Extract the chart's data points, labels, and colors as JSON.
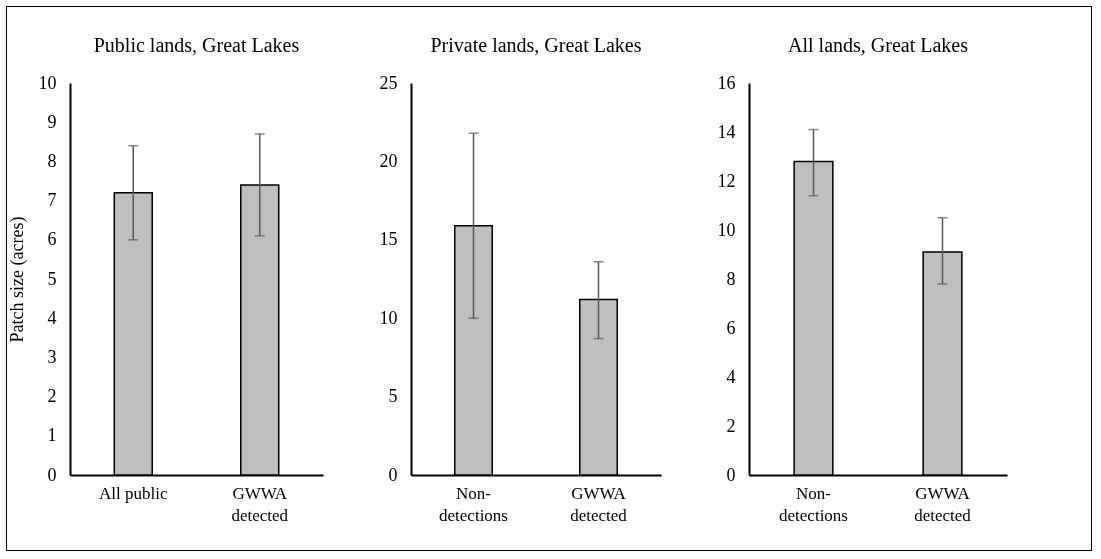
{
  "chart_data": [
    {
      "type": "bar",
      "title": "Public lands, Great Lakes",
      "ylabel": "Patch size (acres)",
      "categories": [
        "All public",
        "GWWA\ndetected"
      ],
      "values": [
        7.2,
        7.4
      ],
      "errors": [
        [
          6.0,
          8.4
        ],
        [
          6.1,
          8.7
        ]
      ],
      "color": "#bfbfbf",
      "ylim": [
        0,
        10
      ],
      "yticks": [
        0,
        1,
        2,
        3,
        4,
        5,
        6,
        7,
        8,
        9,
        10
      ]
    },
    {
      "type": "bar",
      "title": "Private lands, Great Lakes",
      "categories": [
        "Non-\ndetections",
        "GWWA\ndetected"
      ],
      "values": [
        15.9,
        11.2
      ],
      "errors": [
        [
          10.0,
          21.8
        ],
        [
          8.7,
          13.6
        ]
      ],
      "color": "#bfbfbf",
      "ylim": [
        0,
        25
      ],
      "yticks": [
        0,
        5,
        10,
        15,
        20,
        25
      ]
    },
    {
      "type": "bar",
      "title": "All lands, Great Lakes",
      "categories": [
        "Non-\ndetections",
        "GWWA\ndetected"
      ],
      "values": [
        12.8,
        9.1
      ],
      "errors": [
        [
          11.4,
          14.1
        ],
        [
          7.8,
          10.5
        ]
      ],
      "color": "#bfbfbf",
      "ylim": [
        0,
        16
      ],
      "yticks": [
        0,
        2,
        4,
        6,
        8,
        10,
        12,
        14,
        16
      ]
    }
  ]
}
